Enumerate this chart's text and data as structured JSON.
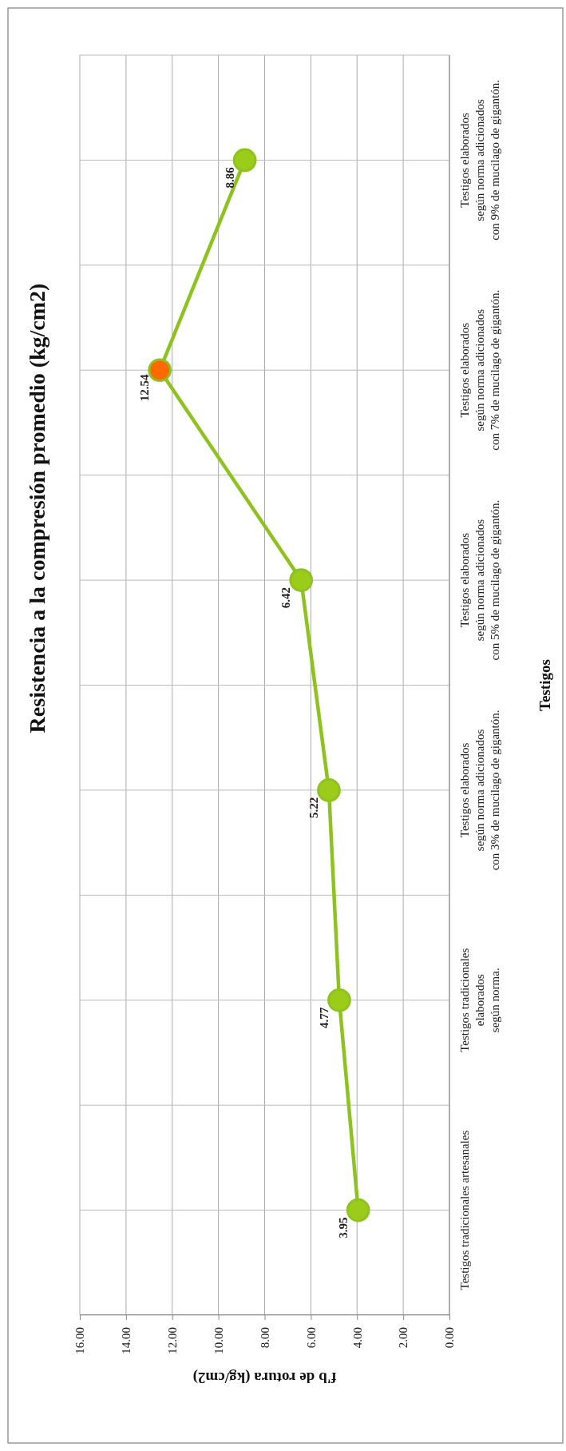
{
  "chart_data": {
    "type": "line",
    "orientation": "horizontal",
    "title": "Resistencia a la compresión promedio (kg/cm2)",
    "xlabel": "f'b de rotura (kg/cm2)",
    "ylabel": "Testigos",
    "categories": [
      "Testigos elaborados\nsegún norma adicionados\ncon 9% de mucilago de gigantón.",
      "Testigos elaborados\nsegún norma adicionados\ncon 7% de mucilago de gigantón.",
      "Testigos elaborados\nsegún norma adicionados\ncon 5% de mucilago de gigantón.",
      "Testigos elaborados\nsegún norma adicionados\ncon 3% de mucilago de gigantón.",
      "Testigos tradicionales\nelaborados\nsegún norma.",
      "Testigos tradicionales artesanales"
    ],
    "series": [
      {
        "color": "#8dc21f",
        "colors": [
          "#9ccc1a",
          "#ff6a00",
          "#9ccc1a",
          "#9ccc1a",
          "#9ccc1a",
          "#9ccc1a"
        ],
        "values": [
          8.86,
          12.54,
          6.42,
          5.22,
          4.77,
          3.95
        ]
      }
    ],
    "xlim": [
      16,
      0
    ],
    "xticks": [
      {
        "value": 16,
        "label": "16.00"
      },
      {
        "value": 14,
        "label": "14.00"
      },
      {
        "value": 12,
        "label": "12.00"
      },
      {
        "value": 10,
        "label": "10.00"
      },
      {
        "value": 8,
        "label": "8.00"
      },
      {
        "value": 6,
        "label": "6.00"
      },
      {
        "value": 4,
        "label": "4.00"
      },
      {
        "value": 2,
        "label": "2.00"
      },
      {
        "value": 0,
        "label": "0.00"
      }
    ],
    "grid": true,
    "marker": "circle",
    "line_style": "solid",
    "data_labels": true
  }
}
